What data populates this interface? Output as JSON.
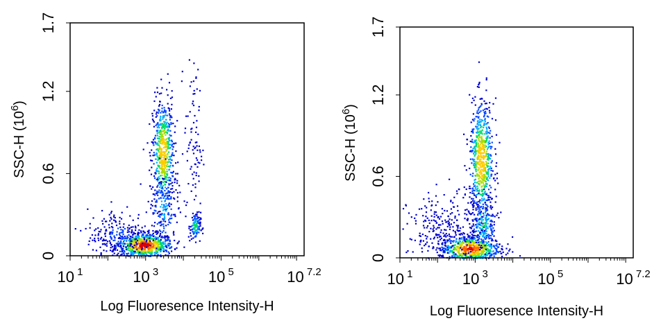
{
  "chart_data": [
    {
      "type": "scatter",
      "style": "density-colored flow cytometry dot plot",
      "xlabel": "Log Fluoresence Intensity-H",
      "ylabel": "SSC-H",
      "ylabel_unit_base": "(10",
      "ylabel_unit_exp": "6",
      "ylabel_unit_close": ")",
      "x_scale": "log10",
      "xlim": [
        1,
        7.2
      ],
      "ylim": [
        0,
        1.7
      ],
      "x_ticks": [
        {
          "base": "10",
          "exp": "1",
          "value": 1
        },
        {
          "base": "10",
          "exp": "3",
          "value": 3
        },
        {
          "base": "10",
          "exp": "5",
          "value": 5
        },
        {
          "base": "10",
          "exp": "7.2",
          "value": 7.2
        }
      ],
      "y_ticks": [
        {
          "label": "0",
          "value": 0
        },
        {
          "label": "0.6",
          "value": 0.6
        },
        {
          "label": "1.2",
          "value": 1.2
        },
        {
          "label": "1.7",
          "value": 1.7
        }
      ],
      "grid": false,
      "colormap": [
        "#0000cc",
        "#0044ff",
        "#00aaff",
        "#00dd66",
        "#aadd00",
        "#ffcc00",
        "#ff6600",
        "#dd0000"
      ],
      "clusters": [
        {
          "x": 2.95,
          "y": 0.08,
          "sx": 0.38,
          "sy": 0.045,
          "n": 700,
          "dense": 0.95
        },
        {
          "x": 3.45,
          "y": 0.75,
          "sx": 0.14,
          "sy": 0.2,
          "n": 600,
          "dense": 0.75
        },
        {
          "x": 3.45,
          "y": 0.35,
          "sx": 0.2,
          "sy": 0.14,
          "n": 150,
          "dense": 0.3
        },
        {
          "x": 4.3,
          "y": 0.22,
          "sx": 0.07,
          "sy": 0.05,
          "n": 110,
          "dense": 0.45
        },
        {
          "x": 4.25,
          "y": 0.8,
          "sx": 0.12,
          "sy": 0.3,
          "n": 90,
          "dense": 0.08
        },
        {
          "x": 2.3,
          "y": 0.15,
          "sx": 0.45,
          "sy": 0.1,
          "n": 250,
          "dense": 0.15
        }
      ]
    },
    {
      "type": "scatter",
      "style": "density-colored flow cytometry dot plot",
      "xlabel": "Log Fluoresence Intensity-H",
      "ylabel": "SSC-H",
      "ylabel_unit_base": "(10",
      "ylabel_unit_exp": "6",
      "ylabel_unit_close": ")",
      "x_scale": "log10",
      "xlim": [
        1,
        7.2
      ],
      "ylim": [
        0,
        1.7
      ],
      "x_ticks": [
        {
          "base": "10",
          "exp": "1",
          "value": 1
        },
        {
          "base": "10",
          "exp": "3",
          "value": 3
        },
        {
          "base": "10",
          "exp": "5",
          "value": 5
        },
        {
          "base": "10",
          "exp": "7.2",
          "value": 7.2
        }
      ],
      "y_ticks": [
        {
          "label": "0",
          "value": 0
        },
        {
          "label": "0.6",
          "value": 0.6
        },
        {
          "label": "1.2",
          "value": 1.2
        },
        {
          "label": "1.7",
          "value": 1.7
        }
      ],
      "grid": false,
      "colormap": [
        "#0000cc",
        "#0044ff",
        "#00aaff",
        "#00dd66",
        "#aadd00",
        "#ffcc00",
        "#ff6600",
        "#dd0000"
      ],
      "clusters": [
        {
          "x": 2.85,
          "y": 0.07,
          "sx": 0.4,
          "sy": 0.05,
          "n": 650,
          "dense": 0.9
        },
        {
          "x": 3.15,
          "y": 0.72,
          "sx": 0.16,
          "sy": 0.22,
          "n": 650,
          "dense": 0.75
        },
        {
          "x": 3.2,
          "y": 0.25,
          "sx": 0.18,
          "sy": 0.1,
          "n": 200,
          "dense": 0.4
        },
        {
          "x": 2.2,
          "y": 0.2,
          "sx": 0.5,
          "sy": 0.14,
          "n": 300,
          "dense": 0.12
        }
      ]
    }
  ]
}
